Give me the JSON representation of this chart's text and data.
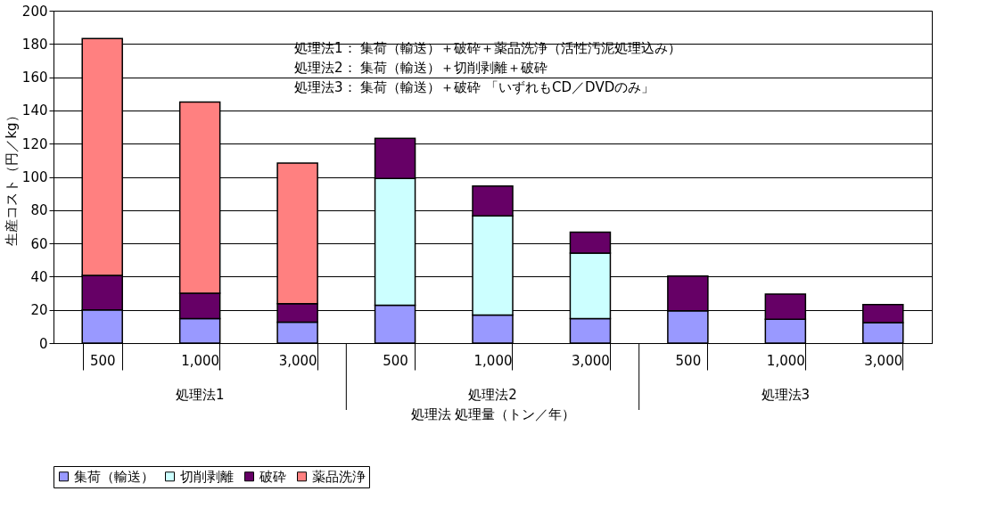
{
  "chart_data": {
    "type": "bar",
    "ylabel": "生産コスト（円／kg）",
    "xlabel": "処理法  処理量（トン／年）",
    "categories": [
      "500",
      "1,000",
      "3,000",
      "500",
      "1,000",
      "3,000",
      "500",
      "1,000",
      "3,000"
    ],
    "series": [
      {
        "name": "集荷（輸送）",
        "color": "#9999ff",
        "values": [
          20,
          14.7,
          12.6,
          22.8,
          16.9,
          14.7,
          19.5,
          14.4,
          12.3
        ]
      },
      {
        "name": "切削剥離",
        "color": "#ccffff",
        "values": [
          null,
          null,
          null,
          76.2,
          59.7,
          39.5,
          null,
          null,
          null
        ]
      },
      {
        "name": "破砕",
        "color": "#660066",
        "values": [
          20.7,
          15.3,
          11.1,
          24.2,
          17.9,
          12.5,
          20.9,
          15.1,
          10.9
        ]
      },
      {
        "name": "薬品洗浄",
        "color": "#ff8080",
        "values": [
          142.6,
          115.1,
          84.6,
          null,
          null,
          null,
          null,
          null,
          null
        ]
      }
    ],
    "stacked": true,
    "ylim": [
      0,
      200
    ],
    "yticks": [
      0,
      20,
      40,
      60,
      80,
      100,
      120,
      140,
      160,
      180,
      200
    ],
    "grid": "y",
    "legend": "bottom",
    "annotations": [
      "処理法1：  集荷（輸送）＋破砕＋薬品洗浄（活性汚泥処理込み）",
      "処理法2：  集荷（輸送）＋切削剥離＋破砕",
      "処理法3：  集荷（輸送）＋破砕      「いずれもCD／DVDのみ」",
      "処理法1",
      "処理法2",
      "処理法3"
    ]
  }
}
